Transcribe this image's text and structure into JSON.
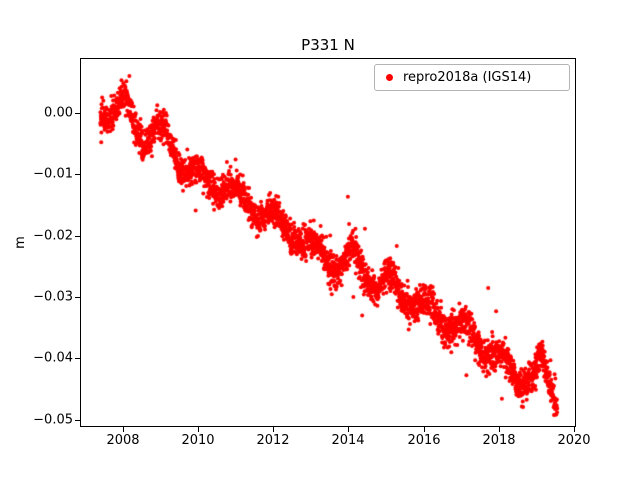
{
  "title": "P331 N",
  "legend": {
    "label": "repro2018a (IGS14)",
    "marker_color": "#ff0000"
  },
  "chart_data": {
    "type": "scatter",
    "title": "P331 N",
    "xlabel": "",
    "ylabel": "m",
    "grid": false,
    "legend_position": "upper right",
    "background": "#ffffff",
    "xlim": [
      2006.86,
      2020.05
    ],
    "ylim": [
      -0.0512,
      0.009
    ],
    "xticks": [
      2008,
      2010,
      2012,
      2014,
      2016,
      2018,
      2020
    ],
    "xtick_labels": [
      "2008",
      "2010",
      "2012",
      "2014",
      "2016",
      "2018",
      "2020"
    ],
    "yticks": [
      0.0,
      -0.01,
      -0.02,
      -0.03,
      -0.04,
      -0.05
    ],
    "ytick_labels": [
      "0.00",
      "−0.01",
      "−0.02",
      "−0.03",
      "−0.04",
      "−0.05"
    ],
    "series": [
      {
        "name": "repro2018a (IGS14)",
        "color": "#ff0000",
        "marker": "dot",
        "marker_radius_px": 2.0,
        "x_start": 2007.4,
        "x_end": 2019.55,
        "n_points": 3000,
        "trend_anchors_x": [
          2007.4,
          2007.75,
          2008.05,
          2008.3,
          2008.55,
          2008.9,
          2009.15,
          2009.45,
          2009.8,
          2010.1,
          2010.45,
          2010.8,
          2011.1,
          2011.5,
          2011.9,
          2012.2,
          2012.6,
          2013.0,
          2013.4,
          2013.75,
          2014.1,
          2014.45,
          2014.8,
          2015.1,
          2015.45,
          2015.8,
          2016.15,
          2016.5,
          2016.85,
          2017.2,
          2017.55,
          2017.9,
          2018.2,
          2018.55,
          2018.9,
          2019.1,
          2019.35,
          2019.55
        ],
        "trend_anchors_y": [
          0.0,
          0.0008,
          0.0018,
          -0.002,
          -0.0048,
          -0.002,
          -0.004,
          -0.008,
          -0.009,
          -0.0108,
          -0.0125,
          -0.0118,
          -0.0135,
          -0.016,
          -0.0165,
          -0.018,
          -0.02,
          -0.0218,
          -0.0235,
          -0.0255,
          -0.0225,
          -0.026,
          -0.0285,
          -0.027,
          -0.03,
          -0.031,
          -0.032,
          -0.034,
          -0.0345,
          -0.0355,
          -0.038,
          -0.0395,
          -0.041,
          -0.0435,
          -0.043,
          -0.0405,
          -0.0445,
          -0.047
        ],
        "seasonal_amplitude": 0.0012,
        "seasonal_phase": 0.1,
        "noise_sigma": 0.0013,
        "outlier_fraction": 0.012,
        "outlier_sigma": 0.005
      }
    ]
  }
}
